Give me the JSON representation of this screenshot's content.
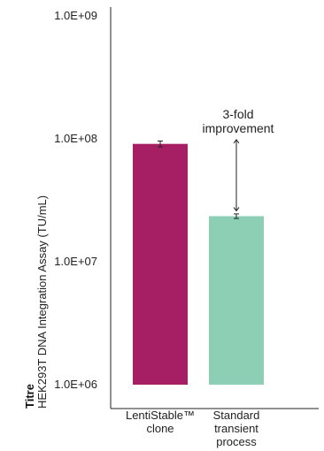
{
  "chart_data": {
    "type": "bar",
    "y_scale": "log",
    "ylim": [
      1000000,
      1000000000
    ],
    "y_ticks": [
      "1.0E+06",
      "1.0E+07",
      "1.0E+08",
      "1.0E+09"
    ],
    "y_tick_values": [
      1000000,
      10000000,
      100000000,
      1000000000
    ],
    "ylabel_bold": "Titre",
    "ylabel": "HEK293T DNA Integration Assay (TU/mL)",
    "categories": [
      [
        "LentiStable™",
        "clone"
      ],
      [
        "Standard",
        "transient",
        "process"
      ]
    ],
    "values": [
      91000000,
      23500000
    ],
    "errors": [
      5000000,
      1000000
    ],
    "colors": [
      "#a61e64",
      "#8dcfb5"
    ],
    "annotation": [
      "3-fold",
      "improvement"
    ],
    "grid": false,
    "legend": "none"
  }
}
